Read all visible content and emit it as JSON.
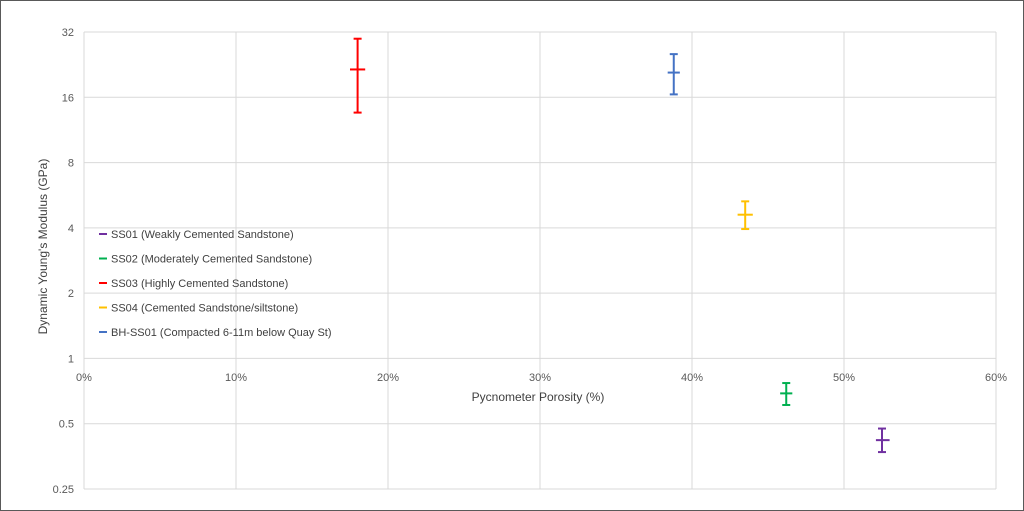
{
  "chart_data": {
    "type": "scatter",
    "title": "",
    "xlabel": "Pycnometer Porosity (%)",
    "ylabel": "Dynamic Young's Modulus (GPa)",
    "xlim": [
      0,
      60
    ],
    "ylim": [
      0.25,
      32
    ],
    "yscale": "log2",
    "x_ticks": [
      0,
      10,
      20,
      30,
      40,
      50,
      60
    ],
    "x_tick_labels": [
      "0%",
      "10%",
      "20%",
      "30%",
      "40%",
      "50%",
      "60%"
    ],
    "y_ticks": [
      0.25,
      0.5,
      1,
      2,
      4,
      8,
      16,
      32
    ],
    "y_tick_labels": [
      "0.25",
      "0.5",
      "1",
      "2",
      "4",
      "8",
      "16",
      "32"
    ],
    "grid": true,
    "legend_position": "left",
    "series": [
      {
        "name": "SS01 (Weakly Cemented Sandstone)",
        "color": "#7030a0",
        "points": [
          {
            "x": 52.5,
            "y": 0.42,
            "y_low": 0.37,
            "y_high": 0.475,
            "x_low": 52.1,
            "x_high": 53.0
          }
        ]
      },
      {
        "name": "SS02 (Moderately Cemented Sandstone)",
        "color": "#00b050",
        "points": [
          {
            "x": 46.2,
            "y": 0.69,
            "y_low": 0.61,
            "y_high": 0.77,
            "x_low": 45.8,
            "x_high": 46.6
          }
        ]
      },
      {
        "name": "SS03 (Highly Cemented Sandstone)",
        "color": "#ff0000",
        "points": [
          {
            "x": 18.0,
            "y": 21.5,
            "y_low": 13.6,
            "y_high": 29.8,
            "x_low": 17.5,
            "x_high": 18.5
          }
        ]
      },
      {
        "name": "SS04 (Cemented Sandstone/siltstone)",
        "color": "#ffc000",
        "points": [
          {
            "x": 43.5,
            "y": 4.6,
            "y_low": 3.95,
            "y_high": 5.3,
            "x_low": 43.0,
            "x_high": 44.0
          }
        ]
      },
      {
        "name": "BH-SS01 (Compacted 6-11m below Quay St)",
        "color": "#4472c4",
        "points": [
          {
            "x": 38.8,
            "y": 20.8,
            "y_low": 16.5,
            "y_high": 25.3,
            "x_low": 38.4,
            "x_high": 39.2
          }
        ]
      }
    ]
  }
}
